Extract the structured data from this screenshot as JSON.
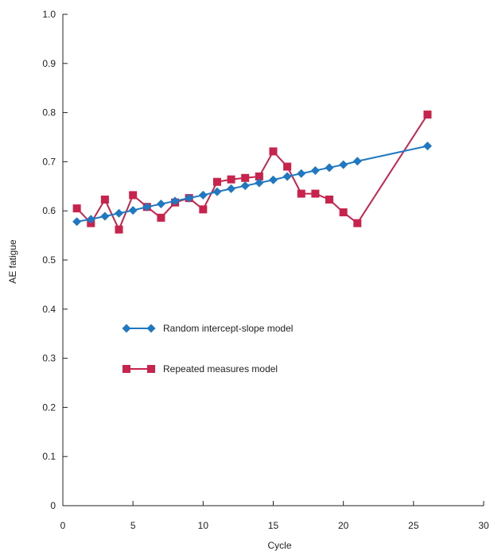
{
  "chart_data": {
    "type": "line",
    "title": "",
    "xlabel": "Cycle",
    "ylabel": "AE fatigue",
    "xlim": [
      0,
      30
    ],
    "ylim": [
      0,
      1.0
    ],
    "xticks": [
      0,
      5,
      10,
      15,
      20,
      25,
      30
    ],
    "yticks": [
      0,
      0.1,
      0.2,
      0.3,
      0.4,
      0.5,
      0.6,
      0.7,
      0.8,
      0.9,
      1.0
    ],
    "xtick_labels": [
      "0",
      "5",
      "10",
      "15",
      "20",
      "25",
      "30"
    ],
    "ytick_labels": [
      "0",
      "0.1",
      "0.2",
      "0.3",
      "0.4",
      "0.5",
      "0.6",
      "0.7",
      "0.8",
      "0.9",
      "1.0"
    ],
    "grid": false,
    "legend_position": "center-left",
    "series": [
      {
        "name": "Random intercept-slope model",
        "color": "#1f78c1",
        "marker": "diamond",
        "x": [
          1,
          2,
          3,
          4,
          5,
          6,
          7,
          8,
          9,
          10,
          11,
          12,
          13,
          14,
          15,
          16,
          17,
          18,
          19,
          20,
          21,
          26
        ],
        "y": [
          0.578,
          0.583,
          0.589,
          0.595,
          0.601,
          0.608,
          0.614,
          0.62,
          0.626,
          0.632,
          0.639,
          0.645,
          0.651,
          0.657,
          0.663,
          0.67,
          0.676,
          0.682,
          0.688,
          0.694,
          0.701,
          0.732
        ]
      },
      {
        "name": "Repeated measures model",
        "color": "#c8234c",
        "marker": "square",
        "x": [
          1,
          2,
          3,
          4,
          5,
          6,
          7,
          8,
          9,
          10,
          11,
          12,
          13,
          14,
          15,
          16,
          17,
          18,
          19,
          20,
          21,
          26
        ],
        "y": [
          0.605,
          0.575,
          0.623,
          0.562,
          0.632,
          0.608,
          0.586,
          0.617,
          0.626,
          0.603,
          0.659,
          0.664,
          0.667,
          0.67,
          0.721,
          0.69,
          0.635,
          0.635,
          0.623,
          0.597,
          0.575,
          0.796
        ]
      }
    ]
  }
}
